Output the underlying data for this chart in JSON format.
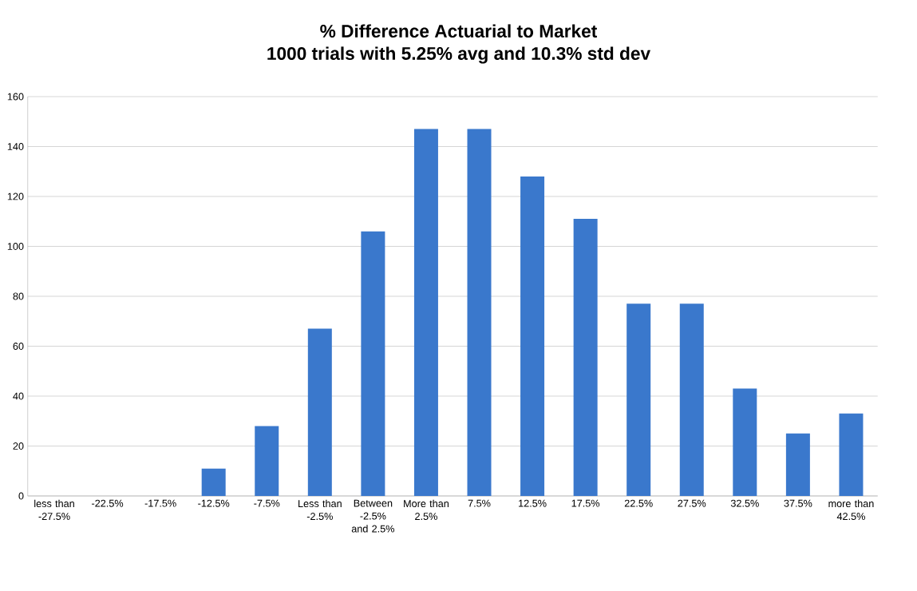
{
  "chart_data": {
    "type": "bar",
    "title": "% Difference Actuarial to Market",
    "subtitle": "1000 trials with 5.25% avg and 10.3% std dev",
    "categories": [
      "less than -27.5%",
      "-22.5%",
      "-17.5%",
      "-12.5%",
      "-7.5%",
      "Less than -2.5%",
      "Between -2.5% and 2.5%",
      "More than 2.5%",
      "7.5%",
      "12.5%",
      "17.5%",
      "22.5%",
      "27.5%",
      "32.5%",
      "37.5%",
      "more than 42.5%"
    ],
    "values": [
      0,
      0,
      0,
      11,
      28,
      67,
      106,
      147,
      147,
      128,
      111,
      77,
      77,
      43,
      25,
      33
    ],
    "color": "#3a78cc",
    "ylim": [
      0,
      160
    ],
    "yticks": [
      0,
      20,
      40,
      60,
      80,
      100,
      120,
      140,
      160
    ],
    "grid": "y"
  }
}
